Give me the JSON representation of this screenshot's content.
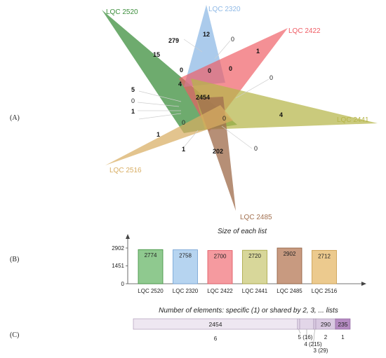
{
  "panel_labels": {
    "a": "(A)",
    "b": "(B)",
    "c": "(C)"
  },
  "venn": {
    "sets": [
      {
        "name": "LQC 2520",
        "color": "#3d8f3d"
      },
      {
        "name": "LQC 2320",
        "color": "#8fb9e6"
      },
      {
        "name": "LQC 2422",
        "color": "#ef5b63"
      },
      {
        "name": "LQC 2441",
        "color": "#b6b54a"
      },
      {
        "name": "LQC 2485",
        "color": "#a2704f"
      },
      {
        "name": "LQC 2516",
        "color": "#d8ad62"
      }
    ],
    "counts": {
      "c279": "279",
      "c12": "12",
      "c0_top": "0",
      "c15": "15",
      "c1_2422": "1",
      "c0_a": "0",
      "c0_b": "0",
      "c0_c": "0",
      "c4_left": "4",
      "c0_right": "0",
      "c5": "5",
      "c0_left": "0",
      "c1_left": "1",
      "center": "2454",
      "c4_2441": "4",
      "c0_d": "0",
      "c0_e": "0",
      "c1_2516": "1",
      "c1_bottom": "1",
      "c202": "202",
      "c0_bottom": "0"
    }
  },
  "bar_chart": {
    "title": "Size of each list",
    "yticks": [
      "2902",
      "1451",
      "0"
    ],
    "ymax": 2902
  },
  "chart_data": {
    "type": "bar",
    "title": "Size of each list",
    "categories": [
      "LQC 2520",
      "LQC 2320",
      "LQC 2422",
      "LQC 2441",
      "LQC 2485",
      "LQC 2516"
    ],
    "values": [
      2774,
      2758,
      2700,
      2720,
      2902,
      2712
    ],
    "value_labels": [
      "2774",
      "2758",
      "2700",
      "2720",
      "2902",
      "2712"
    ],
    "ylim": [
      0,
      2902
    ],
    "colors": [
      "#8fc98f",
      "#b6d4f0",
      "#f59a9f",
      "#d8d79a",
      "#c89a80",
      "#ecca8e"
    ],
    "edge_colors": [
      "#3d8f3d",
      "#6e9fd3",
      "#e0505a",
      "#a5a43c",
      "#8c5a3a",
      "#c99a48"
    ]
  },
  "shared_chart": {
    "title": "Number of elements: specific (1) or shared by 2, 3, ... lists",
    "segments": [
      {
        "shared_by": "6",
        "value": "2454"
      },
      {
        "shared_by": "5",
        "value": "16"
      },
      {
        "shared_by": "4",
        "value": "215"
      },
      {
        "shared_by": "3",
        "value": "29"
      },
      {
        "shared_by": "2",
        "value": "290"
      },
      {
        "shared_by": "1",
        "value": "235"
      }
    ],
    "labels": {
      "six": "6",
      "five": "5 (16)",
      "four": "4 (215)",
      "three": "3 (29)",
      "two": "2",
      "one": "1",
      "val_six": "2454",
      "val_two": "290",
      "val_one": "235"
    }
  }
}
